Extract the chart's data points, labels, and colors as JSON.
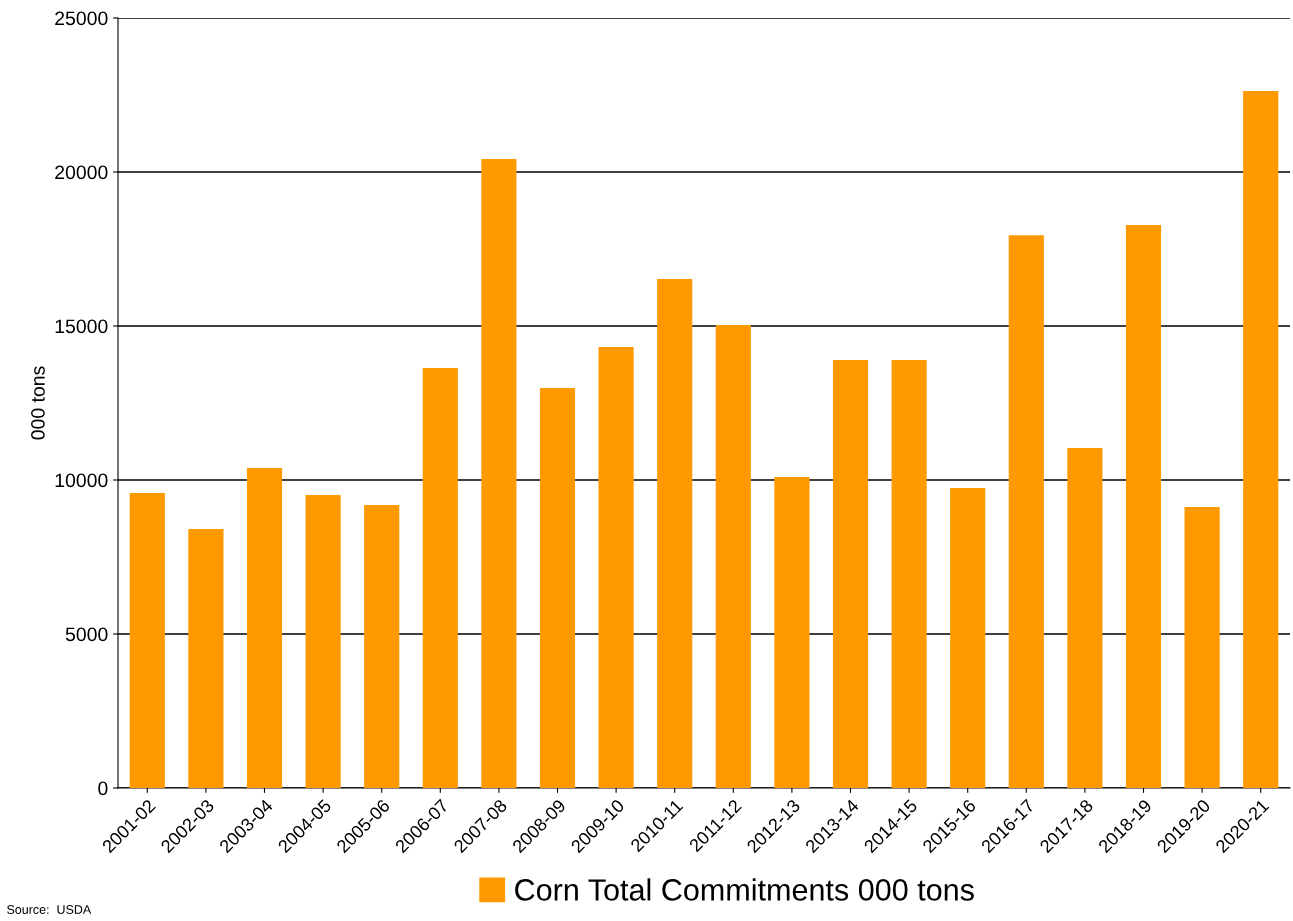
{
  "chart_data": {
    "type": "bar",
    "ylabel": "000 tons",
    "categories": [
      "2001-02",
      "2002-03",
      "2003-04",
      "2004-05",
      "2005-06",
      "2006-07",
      "2007-08",
      "2008-09",
      "2009-10",
      "2010-11",
      "2011-12",
      "2012-13",
      "2013-14",
      "2014-15",
      "2015-16",
      "2016-17",
      "2017-18",
      "2018-19",
      "2019-20",
      "2020-21"
    ],
    "series": [
      {
        "name": "Corn Total Commitments 000 tons",
        "color": "#ff9900",
        "values": [
          9580,
          8410,
          10390,
          9510,
          9190,
          13640,
          20420,
          12990,
          14320,
          16530,
          15030,
          10100,
          13900,
          13900,
          9740,
          17950,
          11040,
          18280,
          9120,
          22630
        ]
      }
    ],
    "ylim": [
      0,
      25000
    ],
    "yticks": [
      0,
      5000,
      10000,
      15000,
      20000,
      25000
    ],
    "grid": "y",
    "legend": "bottom",
    "annotations": [
      "Source:  USDA"
    ]
  }
}
